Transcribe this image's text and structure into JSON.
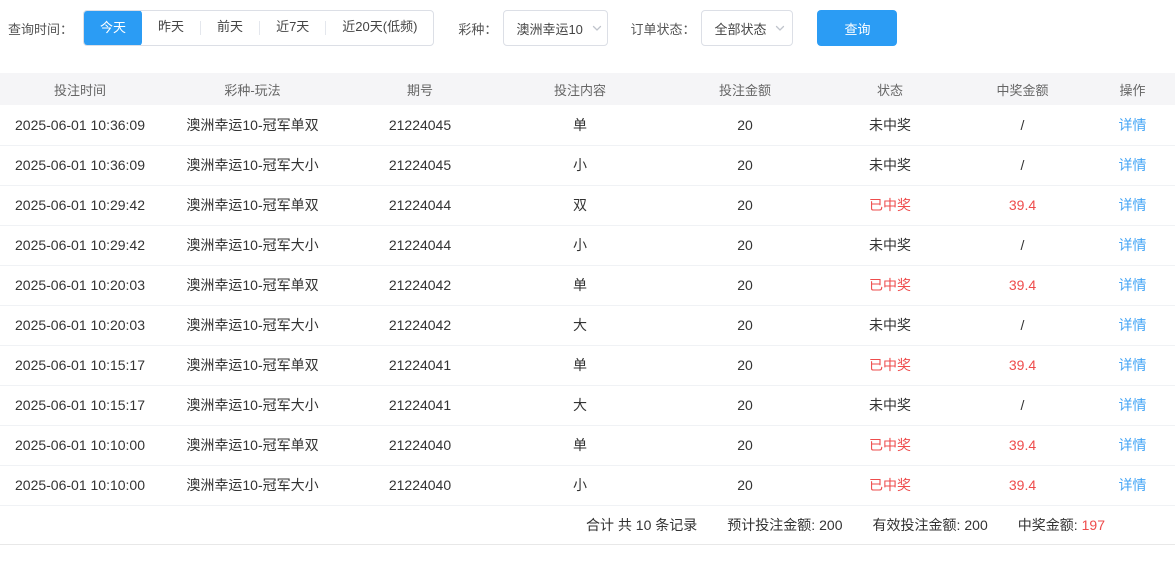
{
  "filters": {
    "time_label": "查询时间：",
    "time_options": [
      {
        "label": "今天",
        "active": true
      },
      {
        "label": "昨天",
        "active": false
      },
      {
        "label": "前天",
        "active": false
      },
      {
        "label": "近7天",
        "active": false
      },
      {
        "label": "近20天(低频)",
        "active": false
      }
    ],
    "lottery_label": "彩种：",
    "lottery_value": "澳洲幸运10",
    "status_label": "订单状态：",
    "status_value": "全部状态",
    "search_button": "查询"
  },
  "table": {
    "headers": [
      "投注时间",
      "彩种-玩法",
      "期号",
      "投注内容",
      "投注金额",
      "状态",
      "中奖金额",
      "操作"
    ],
    "detail_label": "详情",
    "rows": [
      {
        "time": "2025-06-01 10:36:09",
        "game": "澳洲幸运10-冠军单双",
        "issue": "21224045",
        "content": "单",
        "amount": "20",
        "status": "未中奖",
        "prize": "/",
        "win": false
      },
      {
        "time": "2025-06-01 10:36:09",
        "game": "澳洲幸运10-冠军大小",
        "issue": "21224045",
        "content": "小",
        "amount": "20",
        "status": "未中奖",
        "prize": "/",
        "win": false
      },
      {
        "time": "2025-06-01 10:29:42",
        "game": "澳洲幸运10-冠军单双",
        "issue": "21224044",
        "content": "双",
        "amount": "20",
        "status": "已中奖",
        "prize": "39.4",
        "win": true
      },
      {
        "time": "2025-06-01 10:29:42",
        "game": "澳洲幸运10-冠军大小",
        "issue": "21224044",
        "content": "小",
        "amount": "20",
        "status": "未中奖",
        "prize": "/",
        "win": false
      },
      {
        "time": "2025-06-01 10:20:03",
        "game": "澳洲幸运10-冠军单双",
        "issue": "21224042",
        "content": "单",
        "amount": "20",
        "status": "已中奖",
        "prize": "39.4",
        "win": true
      },
      {
        "time": "2025-06-01 10:20:03",
        "game": "澳洲幸运10-冠军大小",
        "issue": "21224042",
        "content": "大",
        "amount": "20",
        "status": "未中奖",
        "prize": "/",
        "win": false
      },
      {
        "time": "2025-06-01 10:15:17",
        "game": "澳洲幸运10-冠军单双",
        "issue": "21224041",
        "content": "单",
        "amount": "20",
        "status": "已中奖",
        "prize": "39.4",
        "win": true
      },
      {
        "time": "2025-06-01 10:15:17",
        "game": "澳洲幸运10-冠军大小",
        "issue": "21224041",
        "content": "大",
        "amount": "20",
        "status": "未中奖",
        "prize": "/",
        "win": false
      },
      {
        "time": "2025-06-01 10:10:00",
        "game": "澳洲幸运10-冠军单双",
        "issue": "21224040",
        "content": "单",
        "amount": "20",
        "status": "已中奖",
        "prize": "39.4",
        "win": true
      },
      {
        "time": "2025-06-01 10:10:00",
        "game": "澳洲幸运10-冠军大小",
        "issue": "21224040",
        "content": "小",
        "amount": "20",
        "status": "已中奖",
        "prize": "39.4",
        "win": true
      }
    ]
  },
  "summary": {
    "items": [
      {
        "label": "合计 共 10 条记录",
        "value": "",
        "red": false
      },
      {
        "label": "预计投注金额:",
        "value": "200",
        "red": false
      },
      {
        "label": "有效投注金额:",
        "value": "200",
        "red": false
      },
      {
        "label": "中奖金额:",
        "value": "197",
        "red": true
      }
    ]
  },
  "colors": {
    "primary_blue": "#2b9cf4",
    "link_blue": "#45a6f6",
    "win_red": "#ee4c4c",
    "header_bg": "#f5f5f7"
  }
}
